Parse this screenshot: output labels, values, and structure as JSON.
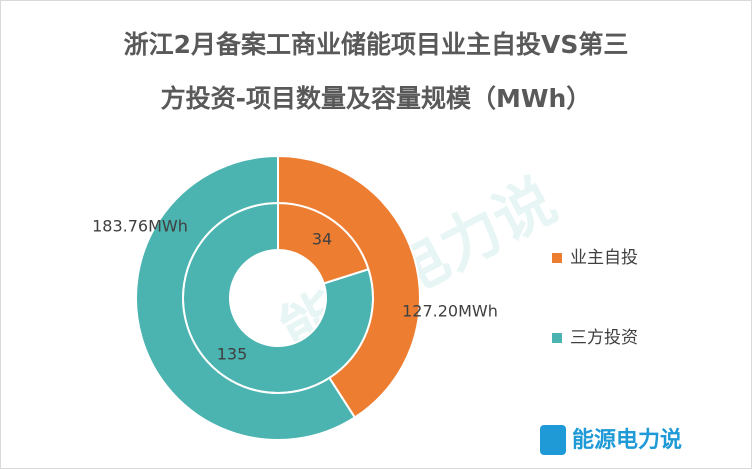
{
  "chart_data": {
    "type": "donut",
    "title": [
      "浙江2月备案工商业储能项目业主自投VS第三",
      "方投资-项目数量及容量规模（MWh）"
    ],
    "categories": [
      "业主自投",
      "三方投资"
    ],
    "colors": [
      "#ed7d31",
      "#4bb3b0"
    ],
    "series": [
      {
        "values": [
          34,
          135
        ]
      },
      {
        "values": [
          127.2,
          183.76
        ],
        "value_labels": [
          "127.20MWh",
          "183.76MWh"
        ]
      }
    ],
    "legend": "right",
    "watermark": "能源电力说",
    "logo_text": "能源电力说"
  }
}
